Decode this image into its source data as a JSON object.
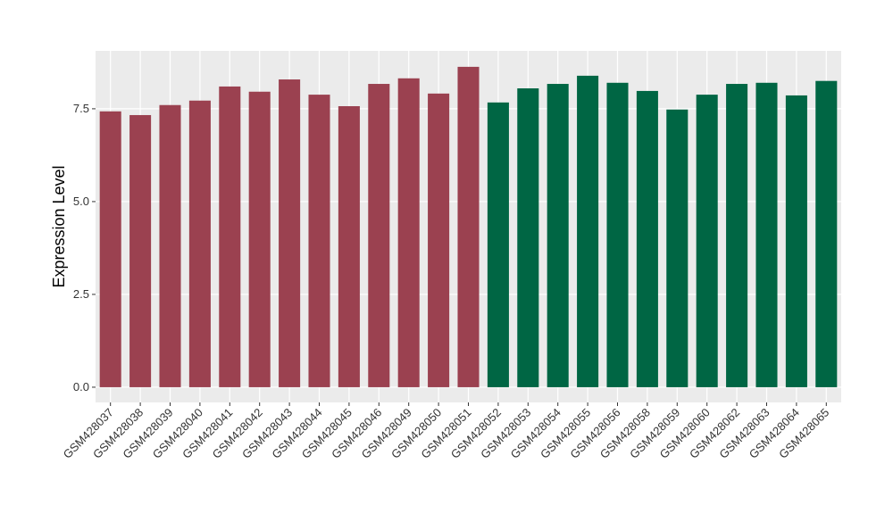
{
  "chart_data": {
    "type": "bar",
    "y_label": "Expression Level",
    "categories": [
      "GSM428037",
      "GSM428038",
      "GSM428039",
      "GSM428040",
      "GSM428041",
      "GSM428042",
      "GSM428043",
      "GSM428044",
      "GSM428045",
      "GSM428046",
      "GSM428049",
      "GSM428050",
      "GSM428051",
      "GSM428052",
      "GSM428053",
      "GSM428054",
      "GSM428055",
      "GSM428056",
      "GSM428058",
      "GSM428059",
      "GSM428060",
      "GSM428062",
      "GSM428063",
      "GSM428064",
      "GSM428065"
    ],
    "values": [
      7.43,
      7.33,
      7.6,
      7.72,
      8.1,
      7.96,
      8.29,
      7.88,
      7.57,
      8.17,
      8.32,
      7.91,
      8.63,
      7.67,
      8.05,
      8.17,
      8.39,
      8.2,
      7.98,
      7.48,
      7.88,
      8.17,
      8.2,
      7.86,
      8.25
    ],
    "colors": [
      "#9b4150",
      "#9b4150",
      "#9b4150",
      "#9b4150",
      "#9b4150",
      "#9b4150",
      "#9b4150",
      "#9b4150",
      "#9b4150",
      "#9b4150",
      "#9b4150",
      "#9b4150",
      "#9b4150",
      "#006644",
      "#006644",
      "#006644",
      "#006644",
      "#006644",
      "#006644",
      "#006644",
      "#006644",
      "#006644",
      "#006644",
      "#006644",
      "#006644"
    ],
    "ylim": [
      -0.41,
      9.06
    ],
    "yticks": [
      {
        "value": 0,
        "label": "0.0"
      },
      2.5,
      {
        "value": 5,
        "label": "5.0"
      },
      7.5
    ],
    "grid": true
  }
}
